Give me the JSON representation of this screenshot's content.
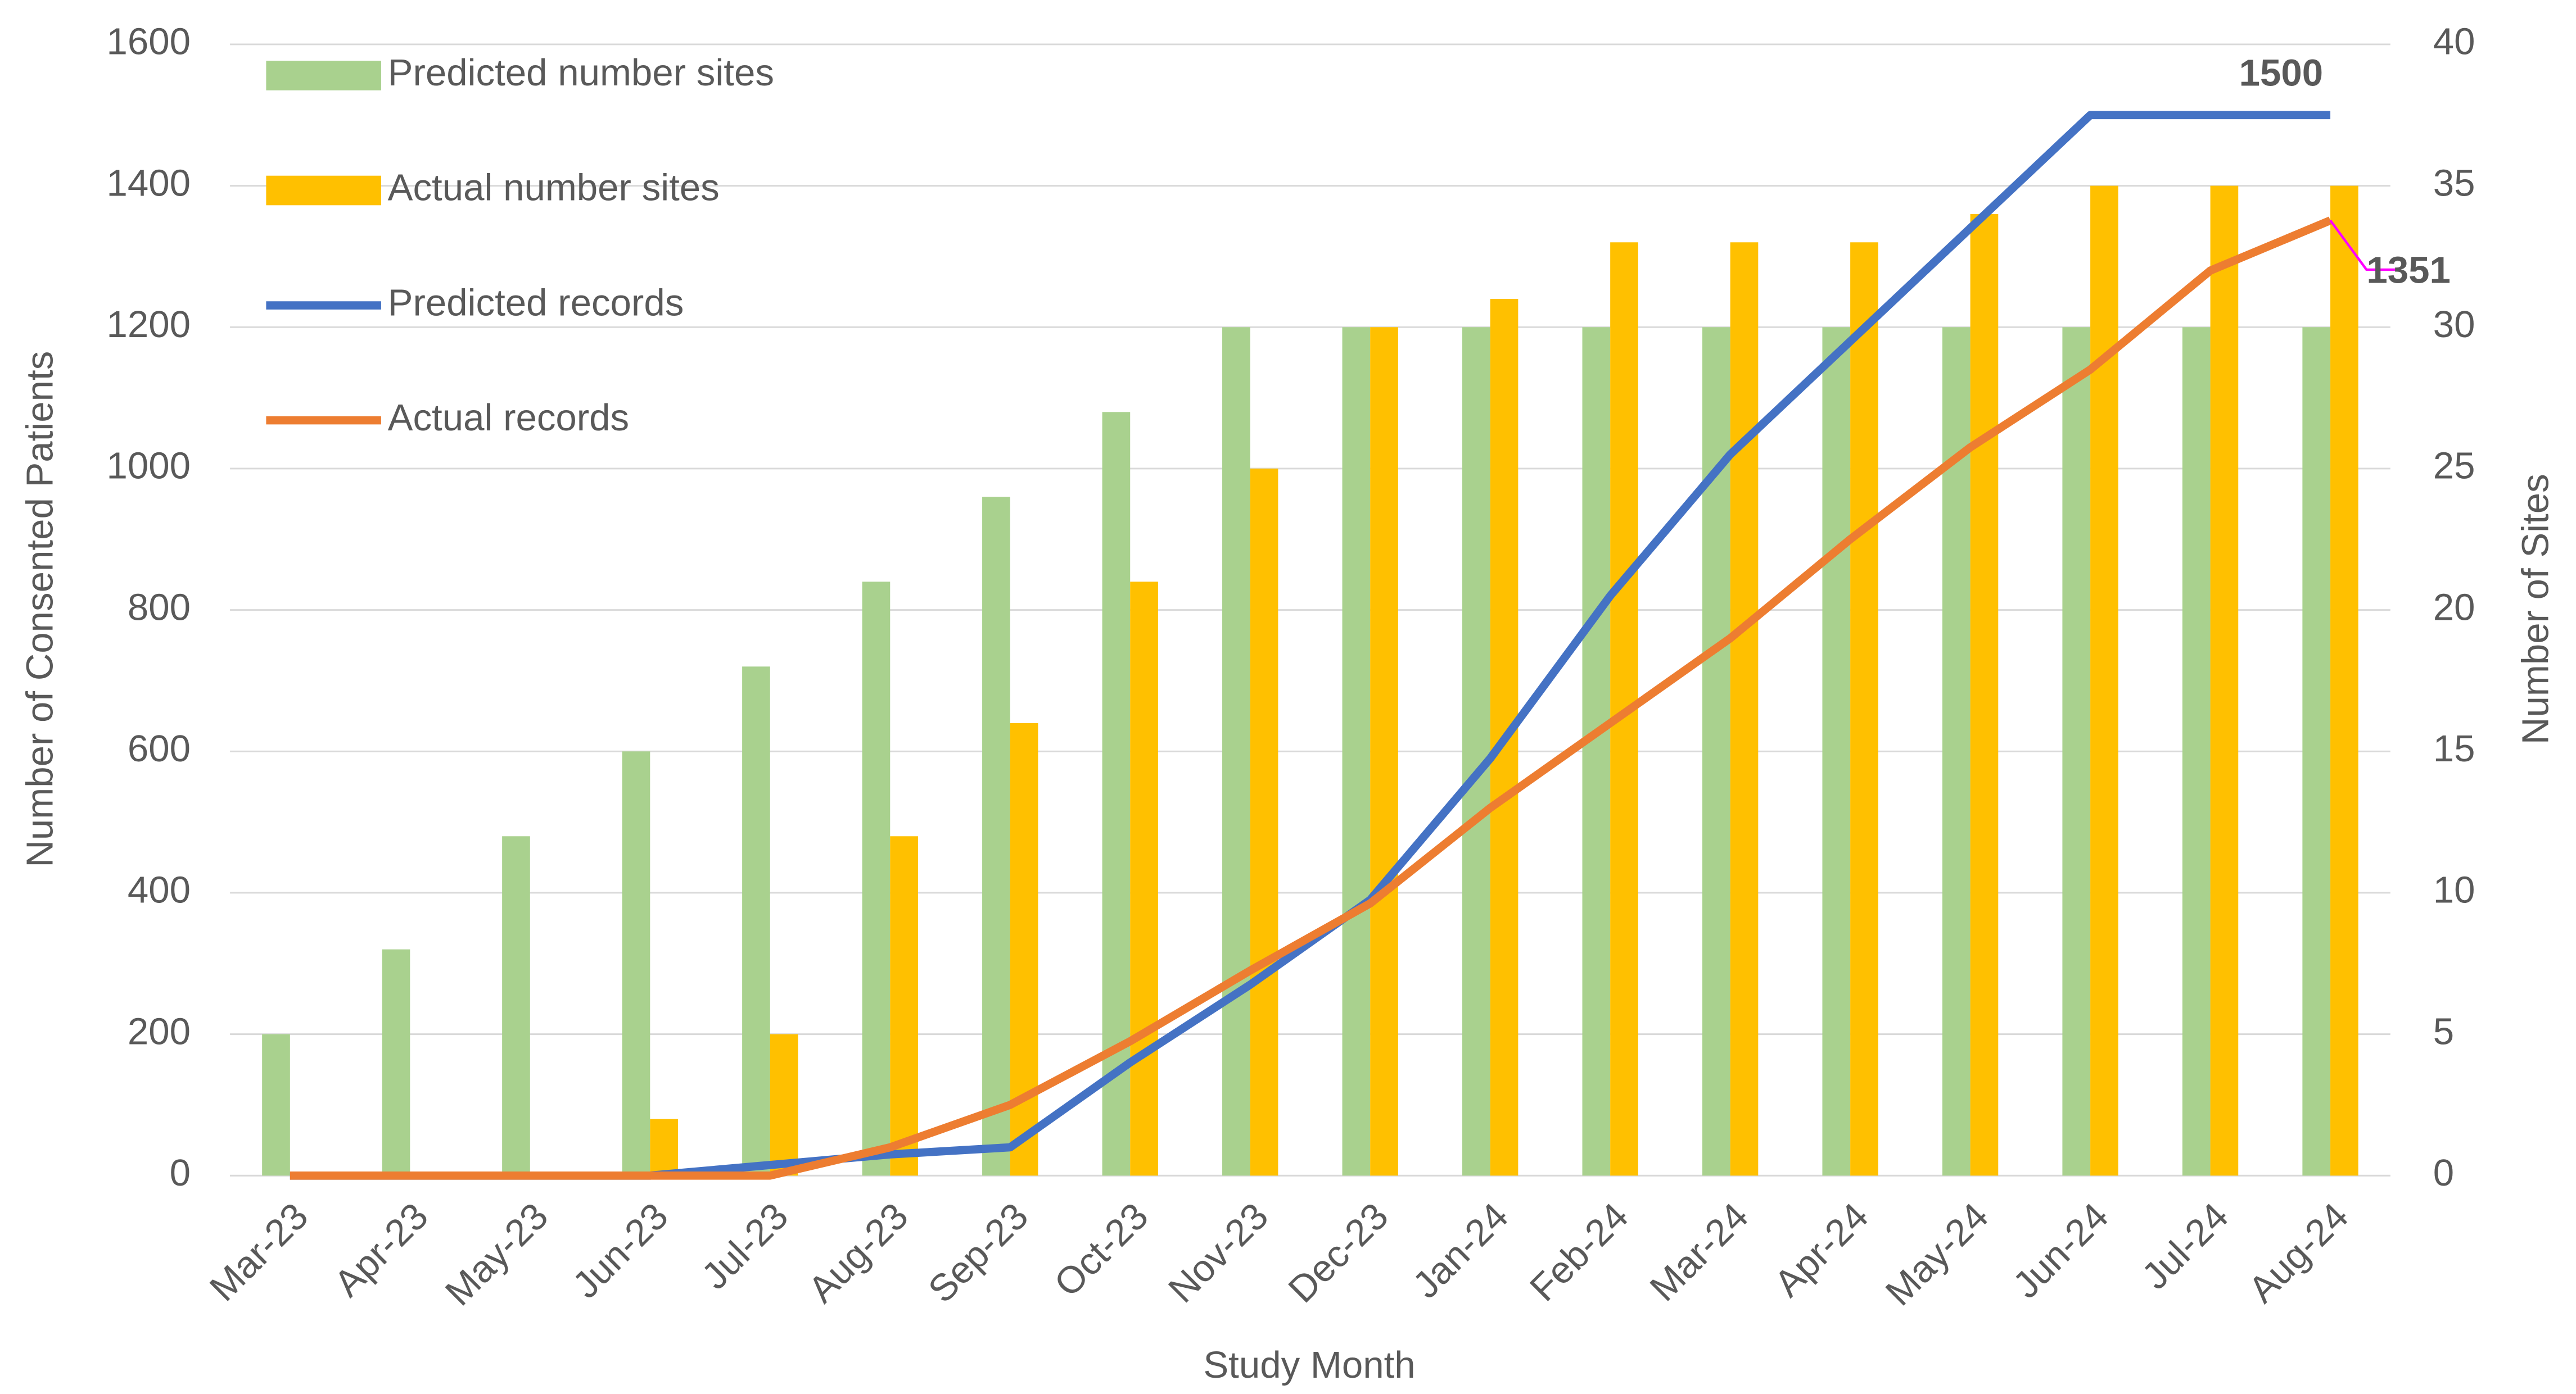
{
  "chart_data": {
    "type": "bar-line",
    "x_label": "Study Month",
    "y_label": "Number of Consented Patients",
    "y2_label": "Number of Sites",
    "categories": [
      "Mar-23",
      "Apr-23",
      "May-23",
      "Jun-23",
      "Jul-23",
      "Aug-23",
      "Sep-23",
      "Oct-23",
      "Nov-23",
      "Dec-23",
      "Jan-24",
      "Feb-24",
      "Mar-24",
      "Apr-24",
      "May-24",
      "Jun-24",
      "Jul-24",
      "Aug-24"
    ],
    "series": [
      {
        "name": "Predicted number sites",
        "type": "bar",
        "axis": "y2",
        "color": "#a9d18e",
        "values": [
          5,
          8,
          12,
          15,
          18,
          21,
          24,
          27,
          30,
          30,
          30,
          30,
          30,
          30,
          30,
          30,
          30,
          30
        ]
      },
      {
        "name": "Actual number sites",
        "type": "bar",
        "axis": "y2",
        "color": "#ffc000",
        "values": [
          0,
          0,
          0,
          2,
          5,
          12,
          16,
          21,
          25,
          30,
          31,
          33,
          33,
          33,
          34,
          35,
          35,
          35
        ]
      },
      {
        "name": "Predicted records",
        "type": "line",
        "color": "#4472c4",
        "values": [
          0,
          0,
          0,
          0,
          15,
          30,
          40,
          160,
          270,
          390,
          590,
          820,
          1020,
          1180,
          1340,
          1500,
          1500,
          1500
        ]
      },
      {
        "name": "Actual records",
        "type": "line",
        "color": "#ed7d31",
        "values": [
          0,
          0,
          0,
          0,
          0,
          40,
          100,
          190,
          290,
          385,
          520,
          640,
          760,
          900,
          1030,
          1140,
          1280,
          1351
        ]
      }
    ],
    "annotations": [
      "1500",
      "1351"
    ],
    "ylim": [
      0,
      1600
    ],
    "yticks": [
      0,
      200,
      400,
      600,
      800,
      1000,
      1200,
      1400,
      1600
    ],
    "y2lim": [
      0,
      40
    ],
    "y2ticks": [
      0,
      5,
      10,
      15,
      20,
      25,
      30,
      35,
      40
    ],
    "grid": true,
    "legend": "top-left"
  }
}
